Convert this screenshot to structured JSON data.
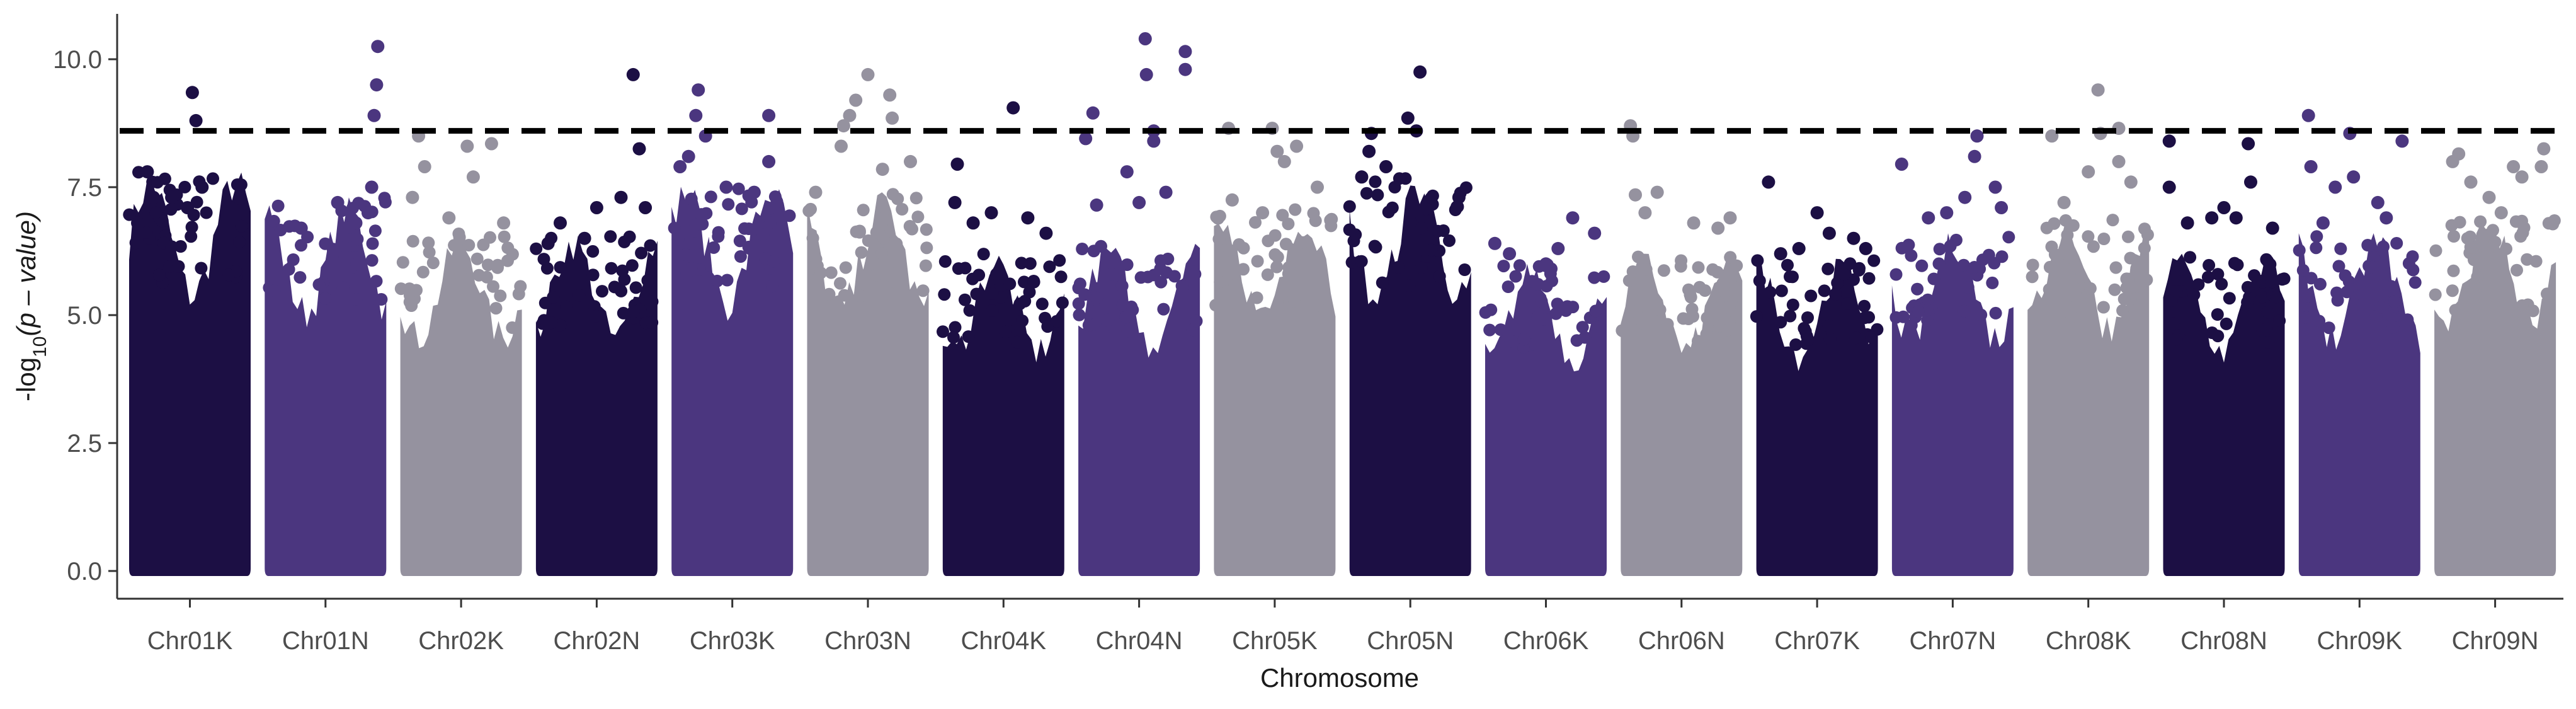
{
  "chart_data": {
    "type": "scatter",
    "subtype": "manhattan",
    "title": "",
    "xlabel": "Chromosome",
    "ylabel": {
      "prefix": "-log",
      "subscript": "10",
      "suffix": "(p – value)"
    },
    "ylim": [
      -0.25,
      10.85
    ],
    "yticks": [
      "0.0",
      "2.5",
      "5.0",
      "7.5",
      "10.0"
    ],
    "threshold": 8.6,
    "grid": false,
    "legend": "none",
    "colors": [
      "#1c0f44",
      "#4b367f",
      "#95929f"
    ],
    "categories": [
      "Chr01K",
      "Chr01N",
      "Chr02K",
      "Chr02N",
      "Chr03K",
      "Chr03N",
      "Chr04K",
      "Chr04N",
      "Chr05K",
      "Chr05N",
      "Chr06K",
      "Chr06N",
      "Chr07K",
      "Chr07N",
      "Chr08K",
      "Chr08N",
      "Chr09K",
      "Chr09N"
    ],
    "series": [
      {
        "name": "Chr01K",
        "color_index": 0,
        "max": 7.8,
        "points": [
          [
            0.52,
            9.35
          ],
          [
            0.55,
            8.8
          ],
          [
            0.35,
            7.3
          ],
          [
            0.6,
            7.5
          ],
          [
            0.15,
            7.8
          ],
          [
            0.2,
            7.3
          ],
          [
            0.48,
            7.1
          ],
          [
            0.07,
            6.8
          ]
        ]
      },
      {
        "name": "Chr01N",
        "color_index": 1,
        "max": 7.3,
        "points": [
          [
            0.93,
            10.25
          ],
          [
            0.92,
            9.5
          ],
          [
            0.9,
            8.9
          ],
          [
            0.88,
            7.5
          ],
          [
            0.6,
            7.2
          ],
          [
            0.85,
            7.0
          ],
          [
            0.3,
            6.7
          ],
          [
            0.75,
            6.8
          ]
        ]
      },
      {
        "name": "Chr02K",
        "color_index": 2,
        "max": 6.6,
        "points": [
          [
            0.15,
            8.5
          ],
          [
            0.2,
            7.9
          ],
          [
            0.75,
            8.35
          ],
          [
            0.55,
            8.3
          ],
          [
            0.6,
            7.7
          ],
          [
            0.1,
            7.3
          ],
          [
            0.4,
            6.9
          ],
          [
            0.85,
            6.8
          ]
        ]
      },
      {
        "name": "Chr02N",
        "color_index": 0,
        "max": 6.6,
        "points": [
          [
            0.8,
            9.7
          ],
          [
            0.85,
            8.25
          ],
          [
            0.5,
            7.1
          ],
          [
            0.2,
            6.8
          ],
          [
            0.7,
            7.3
          ],
          [
            0.4,
            6.5
          ],
          [
            0.1,
            6.4
          ],
          [
            0.9,
            7.1
          ]
        ]
      },
      {
        "name": "Chr03K",
        "color_index": 1,
        "max": 7.6,
        "points": [
          [
            0.22,
            9.4
          ],
          [
            0.2,
            8.9
          ],
          [
            0.28,
            8.5
          ],
          [
            0.8,
            8.9
          ],
          [
            0.07,
            7.9
          ],
          [
            0.14,
            8.1
          ],
          [
            0.68,
            7.4
          ],
          [
            0.8,
            8.0
          ],
          [
            0.45,
            7.5
          ]
        ]
      },
      {
        "name": "Chr03N",
        "color_index": 2,
        "max": 7.4,
        "points": [
          [
            0.3,
            8.7
          ],
          [
            0.35,
            8.9
          ],
          [
            0.5,
            9.7
          ],
          [
            0.68,
            9.3
          ],
          [
            0.7,
            8.85
          ],
          [
            0.4,
            9.2
          ],
          [
            0.28,
            8.3
          ],
          [
            0.62,
            7.85
          ],
          [
            0.85,
            8.0
          ],
          [
            0.07,
            7.4
          ]
        ]
      },
      {
        "name": "Chr04K",
        "color_index": 0,
        "max": 6.2,
        "points": [
          [
            0.58,
            9.05
          ],
          [
            0.12,
            7.95
          ],
          [
            0.1,
            7.2
          ],
          [
            0.4,
            7.0
          ],
          [
            0.7,
            6.9
          ],
          [
            0.85,
            6.6
          ],
          [
            0.25,
            6.8
          ]
        ]
      },
      {
        "name": "Chr04N",
        "color_index": 1,
        "max": 6.4,
        "points": [
          [
            0.55,
            10.4
          ],
          [
            0.56,
            9.7
          ],
          [
            0.88,
            10.15
          ],
          [
            0.88,
            9.8
          ],
          [
            0.12,
            8.95
          ],
          [
            0.06,
            8.45
          ],
          [
            0.62,
            8.6
          ],
          [
            0.62,
            8.4
          ],
          [
            0.4,
            7.8
          ],
          [
            0.72,
            7.4
          ],
          [
            0.5,
            7.2
          ],
          [
            0.15,
            7.15
          ]
        ]
      },
      {
        "name": "Chr05K",
        "color_index": 2,
        "max": 7.1,
        "points": [
          [
            0.12,
            8.65
          ],
          [
            0.48,
            8.65
          ],
          [
            0.68,
            8.3
          ],
          [
            0.52,
            8.2
          ],
          [
            0.58,
            8.0
          ],
          [
            0.15,
            7.25
          ],
          [
            0.85,
            7.5
          ],
          [
            0.4,
            7.0
          ]
        ]
      },
      {
        "name": "Chr05N",
        "color_index": 0,
        "max": 7.7,
        "points": [
          [
            0.58,
            9.75
          ],
          [
            0.48,
            8.85
          ],
          [
            0.55,
            8.6
          ],
          [
            0.18,
            8.55
          ],
          [
            0.16,
            8.2
          ],
          [
            0.3,
            7.9
          ],
          [
            0.9,
            7.3
          ],
          [
            0.1,
            7.7
          ]
        ]
      },
      {
        "name": "Chr06K",
        "color_index": 1,
        "max": 6.0,
        "points": [
          [
            0.08,
            6.4
          ],
          [
            0.72,
            6.9
          ],
          [
            0.5,
            6.0
          ],
          [
            0.9,
            6.6
          ],
          [
            0.2,
            6.2
          ],
          [
            0.6,
            6.3
          ]
        ]
      },
      {
        "name": "Chr06N",
        "color_index": 2,
        "max": 6.2,
        "points": [
          [
            0.08,
            8.7
          ],
          [
            0.1,
            8.5
          ],
          [
            0.12,
            7.35
          ],
          [
            0.3,
            7.4
          ],
          [
            0.2,
            7.0
          ],
          [
            0.6,
            6.8
          ],
          [
            0.9,
            6.9
          ],
          [
            0.8,
            6.7
          ]
        ]
      },
      {
        "name": "Chr07K",
        "color_index": 0,
        "max": 6.1,
        "points": [
          [
            0.1,
            7.6
          ],
          [
            0.5,
            7.0
          ],
          [
            0.6,
            6.6
          ],
          [
            0.35,
            6.3
          ],
          [
            0.8,
            6.5
          ],
          [
            0.9,
            6.3
          ],
          [
            0.2,
            6.2
          ]
        ]
      },
      {
        "name": "Chr07N",
        "color_index": 1,
        "max": 6.6,
        "points": [
          [
            0.7,
            8.5
          ],
          [
            0.68,
            8.1
          ],
          [
            0.08,
            7.95
          ],
          [
            0.85,
            7.5
          ],
          [
            0.6,
            7.3
          ],
          [
            0.9,
            7.1
          ],
          [
            0.45,
            7.0
          ],
          [
            0.3,
            6.9
          ]
        ]
      },
      {
        "name": "Chr08K",
        "color_index": 2,
        "max": 6.9,
        "points": [
          [
            0.58,
            9.4
          ],
          [
            0.75,
            8.65
          ],
          [
            0.6,
            8.55
          ],
          [
            0.2,
            8.5
          ],
          [
            0.75,
            8.0
          ],
          [
            0.5,
            7.8
          ],
          [
            0.85,
            7.6
          ],
          [
            0.3,
            7.2
          ]
        ]
      },
      {
        "name": "Chr08N",
        "color_index": 0,
        "max": 6.2,
        "points": [
          [
            0.05,
            8.4
          ],
          [
            0.05,
            7.5
          ],
          [
            0.5,
            7.1
          ],
          [
            0.7,
            8.35
          ],
          [
            0.72,
            7.6
          ],
          [
            0.4,
            6.9
          ],
          [
            0.2,
            6.8
          ],
          [
            0.6,
            6.9
          ],
          [
            0.9,
            6.7
          ]
        ]
      },
      {
        "name": "Chr09K",
        "color_index": 1,
        "max": 6.6,
        "points": [
          [
            0.08,
            8.9
          ],
          [
            0.42,
            8.55
          ],
          [
            0.85,
            8.4
          ],
          [
            0.1,
            7.9
          ],
          [
            0.45,
            7.7
          ],
          [
            0.3,
            7.5
          ],
          [
            0.65,
            7.2
          ],
          [
            0.72,
            6.9
          ],
          [
            0.2,
            6.8
          ]
        ]
      },
      {
        "name": "Chr09N",
        "color_index": 2,
        "max": 7.0,
        "points": [
          [
            0.2,
            8.15
          ],
          [
            0.15,
            8.0
          ],
          [
            0.65,
            7.9
          ],
          [
            0.72,
            7.7
          ],
          [
            0.9,
            8.25
          ],
          [
            0.88,
            7.9
          ],
          [
            0.3,
            7.6
          ],
          [
            0.45,
            7.3
          ],
          [
            0.55,
            7.0
          ]
        ]
      }
    ]
  }
}
